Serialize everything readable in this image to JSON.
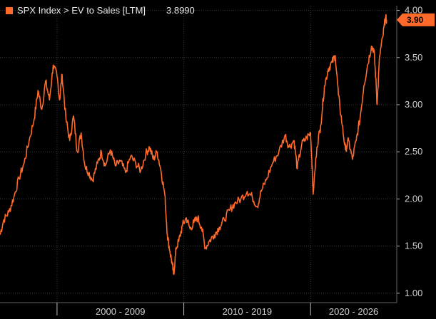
{
  "chart_data": {
    "type": "line",
    "title": "",
    "legend": {
      "label": "SPX Index > EV to Sales [LTM]",
      "value": "3.8990",
      "placement": "top-left"
    },
    "last_value_badge": "3.90",
    "line_color": "#ff6a2b",
    "grid": true,
    "grid_color": "#3a3a3a",
    "y_axis": {
      "position": "right",
      "ticks": [
        "4.00",
        "3.50",
        "3.00",
        "2.50",
        "2.00",
        "1.50",
        "1.00"
      ],
      "ylim": [
        0.9,
        4.05
      ]
    },
    "x_axis": {
      "period_labels": [
        "2000 - 2009",
        "2010 - 2019",
        "2020 - 2026"
      ],
      "period_boundaries": [
        2000,
        2010,
        2020
      ],
      "xlim": [
        1995.5,
        2026.8
      ]
    },
    "series": [
      {
        "x": [
          1995.5,
          1995.8,
          1996.2,
          1996.6,
          1997.0,
          1997.4,
          1997.8,
          1998.2,
          1998.5,
          1998.8,
          1999.1,
          1999.4,
          1999.7,
          2000.0,
          2000.2,
          2000.4,
          2000.7,
          2001.0,
          2001.3,
          2001.6,
          2001.9,
          2002.2,
          2002.5,
          2002.8,
          2003.2,
          2003.5,
          2003.8,
          2004.2,
          2004.6,
          2005.0,
          2005.4,
          2005.8,
          2006.2,
          2006.6,
          2007.0,
          2007.3,
          2007.6,
          2007.9,
          2008.2,
          2008.5,
          2008.7,
          2008.9,
          2009.1,
          2009.2,
          2009.4,
          2009.6,
          2009.9,
          2010.2,
          2010.5,
          2010.8,
          2011.1,
          2011.4,
          2011.7,
          2012.0,
          2012.4,
          2012.8,
          2013.2,
          2013.6,
          2014.0,
          2014.5,
          2015.0,
          2015.4,
          2015.8,
          2016.1,
          2016.5,
          2017.0,
          2017.5,
          2018.0,
          2018.3,
          2018.7,
          2018.95,
          2019.3,
          2019.7,
          2020.0,
          2020.1,
          2020.2,
          2020.5,
          2020.8,
          2021.1,
          2021.4,
          2021.7,
          2021.95,
          2022.2,
          2022.5,
          2022.75,
          2023.0,
          2023.3,
          2023.6,
          2023.9,
          2024.2,
          2024.5,
          2024.8,
          2025.0,
          2025.15,
          2025.25,
          2025.45,
          2025.7,
          2025.9,
          2026.0
        ],
        "y": [
          1.62,
          1.78,
          1.86,
          2.02,
          2.22,
          2.38,
          2.62,
          2.85,
          3.15,
          2.95,
          3.25,
          3.05,
          3.42,
          3.3,
          3.05,
          3.32,
          2.85,
          2.62,
          2.88,
          2.5,
          2.7,
          2.35,
          2.28,
          2.2,
          2.38,
          2.5,
          2.35,
          2.52,
          2.35,
          2.4,
          2.28,
          2.45,
          2.38,
          2.3,
          2.48,
          2.55,
          2.42,
          2.5,
          2.3,
          2.05,
          1.62,
          1.45,
          1.3,
          1.2,
          1.48,
          1.55,
          1.72,
          1.8,
          1.68,
          1.75,
          1.8,
          1.7,
          1.48,
          1.55,
          1.62,
          1.7,
          1.78,
          1.88,
          1.95,
          2.0,
          2.08,
          2.02,
          1.92,
          2.08,
          2.2,
          2.38,
          2.5,
          2.68,
          2.55,
          2.62,
          2.32,
          2.58,
          2.65,
          2.7,
          2.42,
          2.05,
          2.55,
          2.78,
          3.2,
          3.38,
          3.45,
          3.52,
          3.1,
          2.78,
          2.52,
          2.62,
          2.42,
          2.62,
          2.85,
          3.2,
          3.42,
          3.62,
          3.58,
          3.28,
          3.0,
          3.52,
          3.72,
          3.92,
          3.9
        ]
      }
    ]
  }
}
